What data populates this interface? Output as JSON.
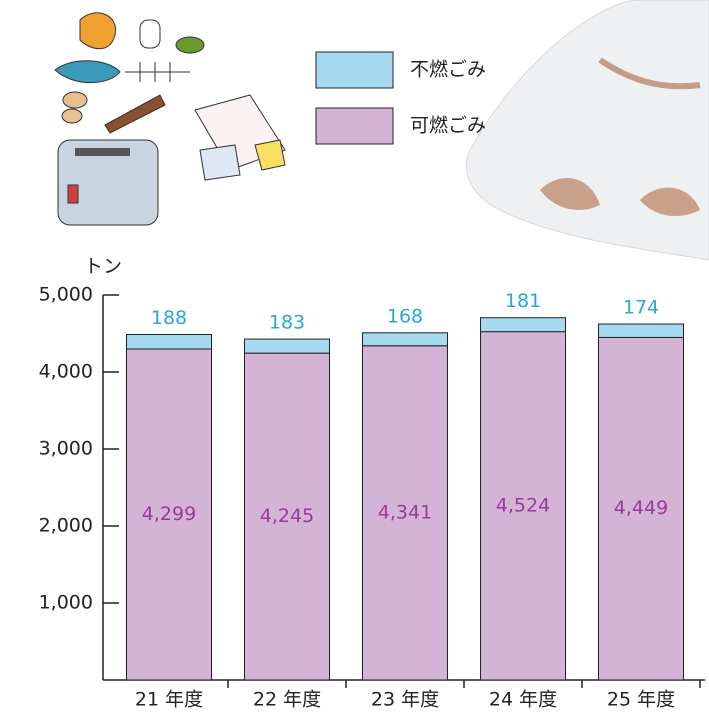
{
  "chart_data": {
    "type": "stacked-bar",
    "unit": "トン",
    "categories": [
      "21 年度",
      "22 年度",
      "23 年度",
      "24 年度",
      "25 年度"
    ],
    "series": [
      {
        "name": "可燃ごみ",
        "color": "#d3b4d6",
        "label_color": "#9a3a98",
        "values": [
          4299,
          4245,
          4341,
          4524,
          4449
        ],
        "value_labels": [
          "4,299",
          "4,245",
          "4,341",
          "4,524",
          "4,449"
        ]
      },
      {
        "name": "不燃ごみ",
        "color": "#a6daf1",
        "label_color": "#2aa6dc",
        "values": [
          188,
          183,
          168,
          181,
          174
        ]
      }
    ],
    "ylim": [
      0,
      5000
    ],
    "yticks": [
      {
        "value": 1000,
        "label": "1,000"
      },
      {
        "value": 2000,
        "label": "2,000"
      },
      {
        "value": 3000,
        "label": "3,000"
      },
      {
        "value": 4000,
        "label": "4,000"
      },
      {
        "value": 5000,
        "label": "5,000"
      }
    ],
    "grid": false
  }
}
